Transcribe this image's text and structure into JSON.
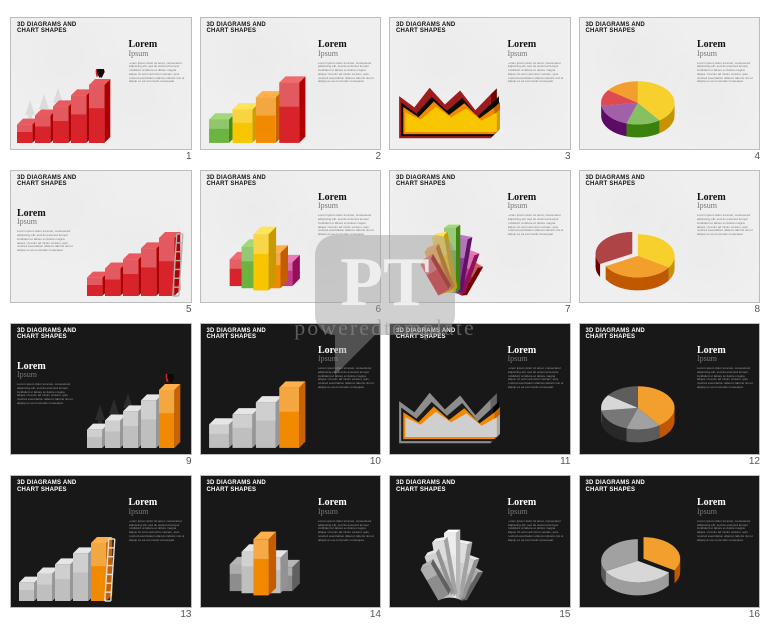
{
  "header_line1": "3D DIAGRAMS AND",
  "header_line2": "CHART SHAPES",
  "lorem_title": "Lorem",
  "lorem_subtitle": "Ipsum",
  "body_text": "Lorem ipsum dolor sit amet, consectetur adipiscing elit, sed do eiusmod tempor incididunt ut labore et dolore magna aliqua. Ut enim ad minim veniam, quis nostrud exercitation ullamco laboris nisi ut aliquip ex ea commodo consequat.",
  "watermark_text": "poweredtemplate",
  "palette_light": {
    "red": "#d8232a",
    "darkred": "#9e1b1e",
    "orange": "#f18a00",
    "yellow": "#f7c600",
    "green": "#6cb33f",
    "green_dark": "#3e8a2a",
    "purple": "#8e3e97",
    "magenta": "#c43a8a",
    "bg": "#efefef",
    "text": "#111111",
    "grid_border": "#bdbdbd"
  },
  "palette_dark": {
    "orange": "#f18a00",
    "silver": "#cfcfcf",
    "silver_dark": "#8d8d8d",
    "black": "#1a1a1a",
    "bg": "#181818",
    "text": "#ffffff"
  },
  "slides": [
    {
      "num": 1,
      "theme": "light",
      "type": "bar3d-hero",
      "caption_side": "right",
      "bars": {
        "values": [
          30,
          45,
          60,
          78,
          95
        ],
        "colors": [
          "#d8232a",
          "#d8232a",
          "#d8232a",
          "#d8232a",
          "#d8232a"
        ],
        "tops": [
          "#e85a5f",
          "#e85a5f",
          "#e85a5f",
          "#e85a5f",
          "#e85a5f"
        ]
      },
      "hero": {
        "body": "#0a0a0a",
        "cape": "#d8232a"
      },
      "arrows_bg": true
    },
    {
      "num": 2,
      "theme": "light",
      "type": "bar3d",
      "caption_side": "right",
      "bars": {
        "values": [
          35,
          50,
          68,
          90
        ],
        "colors": [
          "#6cb33f",
          "#f7c600",
          "#f18a00",
          "#d8232a"
        ],
        "tops": [
          "#a0d977",
          "#ffe35a",
          "#ffb04d",
          "#f06a6f"
        ]
      }
    },
    {
      "num": 3,
      "theme": "light",
      "type": "area3d",
      "caption_side": "right",
      "layers": [
        {
          "color": "#9e1b1e",
          "points": [
            75,
            55,
            90,
            60,
            85,
            50,
            78
          ]
        },
        {
          "color": "#0a0a0a",
          "points": [
            60,
            40,
            70,
            45,
            68,
            35,
            60
          ]
        },
        {
          "color": "#f18a00",
          "points": [
            48,
            30,
            58,
            34,
            55,
            28,
            48
          ]
        },
        {
          "color": "#f7c600",
          "points": [
            35,
            22,
            45,
            26,
            42,
            20,
            35
          ]
        }
      ]
    },
    {
      "num": 4,
      "theme": "light",
      "type": "pie3d",
      "caption_side": "right",
      "slices": [
        {
          "value": 40,
          "color": "#f7c600"
        },
        {
          "value": 15,
          "color": "#6cb33f"
        },
        {
          "value": 18,
          "color": "#8e3e97"
        },
        {
          "value": 12,
          "color": "#d8232a"
        },
        {
          "value": 15,
          "color": "#f18a00"
        }
      ]
    },
    {
      "num": 5,
      "theme": "light",
      "type": "bar3d-ladder",
      "caption_side": "left",
      "bars": {
        "values": [
          30,
          45,
          60,
          78,
          95
        ],
        "colors": [
          "#d8232a",
          "#d8232a",
          "#d8232a",
          "#d8232a",
          "#d8232a"
        ],
        "tops": [
          "#e85a5f",
          "#e85a5f",
          "#e85a5f",
          "#e85a5f",
          "#e85a5f"
        ]
      },
      "ladder_color": "#b0b0b0"
    },
    {
      "num": 6,
      "theme": "light",
      "type": "bar3d-cluster",
      "caption_side": "right",
      "bars": {
        "values": [
          45,
          70,
          95,
          60,
          40
        ],
        "colors": [
          "#d8232a",
          "#6cb33f",
          "#f7c600",
          "#f18a00",
          "#c43a8a"
        ],
        "tops": [
          "#f06a6f",
          "#a0d977",
          "#ffe35a",
          "#ffb04d",
          "#e87bb8"
        ]
      }
    },
    {
      "num": 7,
      "theme": "light",
      "type": "bar3d-fan",
      "caption_side": "right",
      "bars": {
        "values": [
          55,
          70,
          88,
          100,
          85,
          65,
          50
        ],
        "colors": [
          "#d8232a",
          "#f18a00",
          "#f7c600",
          "#6cb33f",
          "#8e3e97",
          "#c43a8a",
          "#9e1b1e"
        ],
        "tops": [
          "#f06a6f",
          "#ffb04d",
          "#ffe35a",
          "#a0d977",
          "#bb7ac2",
          "#e87bb8",
          "#d65a5e"
        ]
      }
    },
    {
      "num": 8,
      "theme": "light",
      "type": "pie3d-exploded",
      "caption_side": "right",
      "slices": [
        {
          "value": 34,
          "color": "#f7c600"
        },
        {
          "value": 33,
          "color": "#f18a00"
        },
        {
          "value": 33,
          "color": "#9e1b1e"
        }
      ],
      "exploded_index": 2
    },
    {
      "num": 9,
      "theme": "dark",
      "type": "bar3d-hero",
      "caption_side": "left",
      "bars": {
        "values": [
          30,
          45,
          60,
          78,
          95
        ],
        "colors": [
          "#bfbfbf",
          "#bfbfbf",
          "#bfbfbf",
          "#bfbfbf",
          "#f18a00"
        ],
        "tops": [
          "#e6e6e6",
          "#e6e6e6",
          "#e6e6e6",
          "#e6e6e6",
          "#ffb04d"
        ]
      },
      "hero": {
        "body": "#0a0a0a",
        "cape": "#d8232a"
      },
      "arrows_bg": true
    },
    {
      "num": 10,
      "theme": "dark",
      "type": "bar3d",
      "caption_side": "right",
      "bars": {
        "values": [
          35,
          50,
          68,
          90
        ],
        "colors": [
          "#bfbfbf",
          "#bfbfbf",
          "#bfbfbf",
          "#f18a00"
        ],
        "tops": [
          "#e6e6e6",
          "#e6e6e6",
          "#e6e6e6",
          "#ffb04d"
        ]
      }
    },
    {
      "num": 11,
      "theme": "dark",
      "type": "area3d",
      "caption_side": "right",
      "layers": [
        {
          "color": "#8d8d8d",
          "points": [
            75,
            55,
            90,
            60,
            85,
            50,
            78
          ]
        },
        {
          "color": "#1a1a1a",
          "points": [
            60,
            40,
            70,
            45,
            68,
            35,
            60
          ]
        },
        {
          "color": "#f18a00",
          "points": [
            48,
            30,
            58,
            34,
            55,
            28,
            48
          ]
        },
        {
          "color": "#cfcfcf",
          "points": [
            35,
            22,
            45,
            26,
            42,
            20,
            35
          ]
        }
      ]
    },
    {
      "num": 12,
      "theme": "dark",
      "type": "pie3d",
      "caption_side": "right",
      "slices": [
        {
          "value": 40,
          "color": "#f18a00"
        },
        {
          "value": 15,
          "color": "#8d8d8d"
        },
        {
          "value": 18,
          "color": "#5a5a5a"
        },
        {
          "value": 12,
          "color": "#cfcfcf"
        },
        {
          "value": 15,
          "color": "#3a3a3a"
        }
      ]
    },
    {
      "num": 13,
      "theme": "dark",
      "type": "bar3d-ladder",
      "caption_side": "right",
      "bars": {
        "values": [
          30,
          45,
          60,
          78,
          95
        ],
        "colors": [
          "#bfbfbf",
          "#bfbfbf",
          "#bfbfbf",
          "#bfbfbf",
          "#f18a00"
        ],
        "tops": [
          "#e6e6e6",
          "#e6e6e6",
          "#e6e6e6",
          "#e6e6e6",
          "#ffb04d"
        ]
      },
      "ladder_color": "#e0e0e0"
    },
    {
      "num": 14,
      "theme": "dark",
      "type": "bar3d-cluster",
      "caption_side": "right",
      "bars": {
        "values": [
          45,
          70,
          95,
          60,
          40
        ],
        "colors": [
          "#8d8d8d",
          "#bfbfbf",
          "#f18a00",
          "#bfbfbf",
          "#8d8d8d"
        ],
        "tops": [
          "#b5b5b5",
          "#e6e6e6",
          "#ffb04d",
          "#e6e6e6",
          "#b5b5b5"
        ]
      }
    },
    {
      "num": 15,
      "theme": "dark",
      "type": "bar3d-fan",
      "caption_side": "right",
      "bars": {
        "values": [
          55,
          70,
          88,
          100,
          85,
          65,
          50
        ],
        "colors": [
          "#8d8d8d",
          "#bfbfbf",
          "#cfcfcf",
          "#e6e6e6",
          "#cfcfcf",
          "#bfbfbf",
          "#8d8d8d"
        ],
        "tops": [
          "#b5b5b5",
          "#e6e6e6",
          "#f0f0f0",
          "#ffffff",
          "#f0f0f0",
          "#e6e6e6",
          "#b5b5b5"
        ]
      }
    },
    {
      "num": 16,
      "theme": "dark",
      "type": "pie3d-exploded",
      "caption_side": "right",
      "slices": [
        {
          "value": 34,
          "color": "#f18a00"
        },
        {
          "value": 33,
          "color": "#cfcfcf"
        },
        {
          "value": 33,
          "color": "#8d8d8d"
        }
      ],
      "exploded_index": 0
    }
  ]
}
